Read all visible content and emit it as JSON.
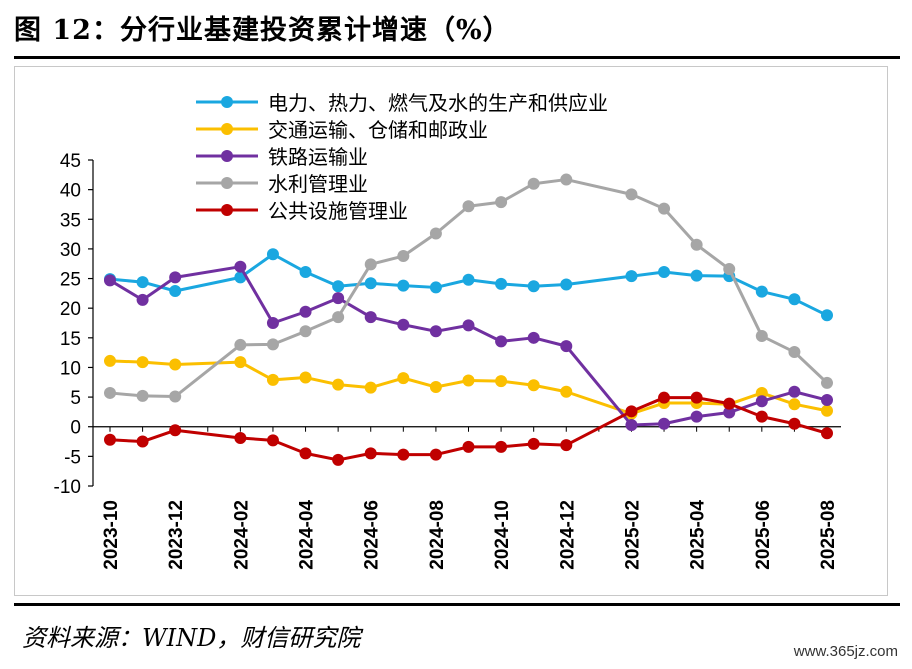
{
  "title": "图 12：分行业基建投资累计增速（%）",
  "source": "资料来源：WIND，财信研究院",
  "watermark": "www.365jz.com",
  "chart_data": {
    "type": "line",
    "x": [
      "2023-10",
      "2023-11",
      "2023-12",
      "2024-01",
      "2024-02",
      "2024-03",
      "2024-04",
      "2024-05",
      "2024-06",
      "2024-07",
      "2024-08",
      "2024-09",
      "2024-10",
      "2024-11",
      "2024-12",
      "2025-01",
      "2025-02",
      "2025-03",
      "2025-04",
      "2025-05",
      "2025-06",
      "2025-07",
      "2025-08"
    ],
    "xtick_labels": [
      "2023-10",
      "2023-12",
      "2024-02",
      "2024-04",
      "2024-06",
      "2024-08",
      "2024-10",
      "2024-12",
      "2025-02",
      "2025-04",
      "2025-06",
      "2025-08"
    ],
    "yticks": [
      45,
      40,
      35,
      30,
      25,
      20,
      15,
      10,
      5,
      0,
      -5,
      -10
    ],
    "ylim": [
      -10,
      45
    ],
    "legend_position": "top-left",
    "series": [
      {
        "name": "电力、热力、燃气及水的生产和供应业",
        "color": "#1aa7e0",
        "values": [
          24.9,
          24.4,
          22.9,
          null,
          25.2,
          29.1,
          26.1,
          23.7,
          24.2,
          23.8,
          23.5,
          24.8,
          24.1,
          23.7,
          24.0,
          null,
          25.4,
          26.1,
          25.5,
          25.4,
          22.8,
          21.5,
          18.8
        ]
      },
      {
        "name": "交通运输、仓储和邮政业",
        "color": "#fbbf00",
        "values": [
          11.1,
          10.9,
          10.5,
          null,
          10.9,
          7.9,
          8.3,
          7.1,
          6.6,
          8.2,
          6.7,
          7.8,
          7.7,
          7.0,
          5.9,
          null,
          2.2,
          4.0,
          4.0,
          3.8,
          5.7,
          3.8,
          2.7
        ]
      },
      {
        "name": "铁路运输业",
        "color": "#7030a0",
        "values": [
          24.7,
          21.4,
          25.2,
          null,
          27.0,
          17.5,
          19.4,
          21.7,
          18.5,
          17.2,
          16.1,
          17.1,
          14.4,
          15.0,
          13.6,
          null,
          0.3,
          0.5,
          1.7,
          2.4,
          4.3,
          5.9,
          4.5
        ]
      },
      {
        "name": "水利管理业",
        "color": "#a6a6a6",
        "values": [
          5.7,
          5.2,
          5.1,
          null,
          13.8,
          13.9,
          16.1,
          18.5,
          27.4,
          28.8,
          32.6,
          37.2,
          37.9,
          41.0,
          41.7,
          null,
          39.2,
          36.8,
          30.7,
          26.6,
          15.3,
          12.6,
          7.4
        ]
      },
      {
        "name": "公共设施管理业",
        "color": "#c00000",
        "values": [
          -2.2,
          -2.5,
          -0.6,
          null,
          -1.9,
          -2.3,
          -4.5,
          -5.6,
          -4.5,
          -4.7,
          -4.7,
          -3.4,
          -3.4,
          -2.9,
          -3.1,
          null,
          2.6,
          4.9,
          4.9,
          3.9,
          1.7,
          0.5,
          -1.1
        ]
      }
    ]
  }
}
